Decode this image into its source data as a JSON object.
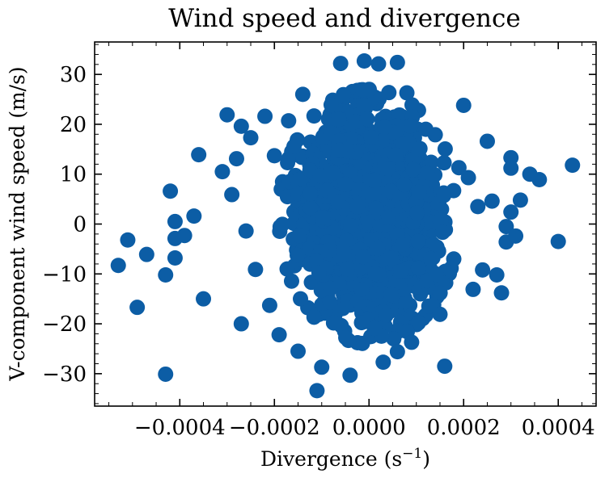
{
  "chart_data": {
    "type": "scatter",
    "title": "Wind speed and divergence",
    "xlabel": {
      "base": "Divergence (s",
      "sup": "−1",
      "tail": ")"
    },
    "ylabel": "V-component wind speed (m/s)",
    "xlim": [
      -0.00058,
      0.00048
    ],
    "ylim": [
      -36.5,
      36.5
    ],
    "xticks": [
      -0.0004,
      -0.0002,
      0.0,
      0.0002,
      0.0004
    ],
    "xtick_labels": [
      "−0.0004",
      "−0.0002",
      "0.0000",
      "0.0002",
      "0.0004"
    ],
    "yticks": [
      -30,
      -20,
      -10,
      0,
      10,
      20,
      30
    ],
    "ytick_labels": [
      "−30",
      "−20",
      "−10",
      "0",
      "10",
      "20",
      "30"
    ],
    "grid": false,
    "legend": "none",
    "marker_color": "#0C5DA5",
    "series": [
      {
        "core": {
          "x_range": [
            -0.00019,
            0.00019
          ],
          "y_range": [
            -24,
            27
          ]
        },
        "points": [
          [
            -0.00053,
            -8.3
          ],
          [
            -0.00051,
            -3.2
          ],
          [
            -0.00049,
            -16.7
          ],
          [
            -0.00047,
            -6.1
          ],
          [
            -0.00043,
            -10.2
          ],
          [
            -0.00043,
            -30.1
          ],
          [
            -0.00042,
            6.6
          ],
          [
            -0.00041,
            0.5
          ],
          [
            -0.00041,
            -2.9
          ],
          [
            -0.00041,
            -6.8
          ],
          [
            -0.00039,
            -2.3
          ],
          [
            -0.00037,
            1.6
          ],
          [
            -0.00036,
            13.9
          ],
          [
            -0.00035,
            -15.0
          ],
          [
            -0.00031,
            10.5
          ],
          [
            -0.0003,
            21.9
          ],
          [
            -0.00029,
            5.9
          ],
          [
            -0.00028,
            13.1
          ],
          [
            -0.00027,
            19.6
          ],
          [
            -0.00027,
            -20.0
          ],
          [
            -0.00026,
            -1.4
          ],
          [
            -0.00025,
            17.3
          ],
          [
            -0.00024,
            -9.1
          ],
          [
            -0.00022,
            21.6
          ],
          [
            -0.00021,
            -16.3
          ],
          [
            -0.0002,
            13.7
          ],
          [
            -0.00019,
            -22.2
          ],
          [
            -0.00017,
            20.7
          ],
          [
            -0.00015,
            -25.5
          ],
          [
            -0.00014,
            26.0
          ],
          [
            -0.00011,
            -33.4
          ],
          [
            -0.0001,
            -28.7
          ],
          [
            -8e-05,
            23.9
          ],
          [
            -6e-05,
            32.2
          ],
          [
            -4e-05,
            -30.3
          ],
          [
            -1e-05,
            32.7
          ],
          [
            2e-05,
            32.1
          ],
          [
            3e-05,
            -27.7
          ],
          [
            6e-05,
            32.4
          ],
          [
            6e-05,
            -25.6
          ],
          [
            8e-05,
            26.3
          ],
          [
            9e-05,
            -23.7
          ],
          [
            0.00012,
            19.0
          ],
          [
            0.00014,
            17.9
          ],
          [
            0.00015,
            -18.1
          ],
          [
            0.00016,
            -28.5
          ],
          [
            0.00019,
            11.3
          ],
          [
            0.0002,
            23.8
          ],
          [
            0.00021,
            9.3
          ],
          [
            0.00022,
            -13.1
          ],
          [
            0.00023,
            3.5
          ],
          [
            0.00024,
            -9.2
          ],
          [
            0.00025,
            16.6
          ],
          [
            0.00026,
            4.6
          ],
          [
            0.00027,
            -10.2
          ],
          [
            0.00028,
            -13.8
          ],
          [
            0.00029,
            -0.5
          ],
          [
            0.00029,
            -3.6
          ],
          [
            0.0003,
            13.3
          ],
          [
            0.0003,
            11.2
          ],
          [
            0.0003,
            2.4
          ],
          [
            0.00031,
            -2.4
          ],
          [
            0.00032,
            4.8
          ],
          [
            0.00034,
            10.0
          ],
          [
            0.00036,
            8.9
          ],
          [
            0.0004,
            -3.5
          ],
          [
            0.00043,
            11.8
          ]
        ]
      }
    ]
  }
}
